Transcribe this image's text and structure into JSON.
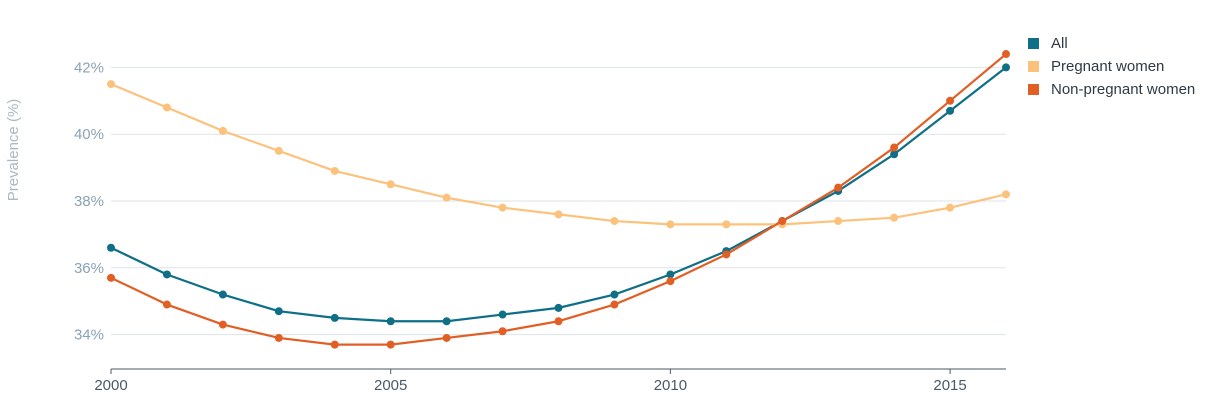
{
  "chart_data": {
    "type": "line",
    "ylabel": "Prevalence (%)",
    "xlabel": "",
    "x": [
      2000,
      2001,
      2002,
      2003,
      2004,
      2005,
      2006,
      2007,
      2008,
      2009,
      2010,
      2011,
      2012,
      2013,
      2014,
      2015,
      2016
    ],
    "x_ticks": [
      2000,
      2005,
      2010,
      2015
    ],
    "x_tick_labels": [
      "2000",
      "2005",
      "2010",
      "2015"
    ],
    "y_ticks": [
      34,
      36,
      38,
      40,
      42
    ],
    "y_tick_labels": [
      "34%",
      "36%",
      "38%",
      "40%",
      "42%"
    ],
    "xlim": [
      2000,
      2016
    ],
    "ylim": [
      33,
      43
    ],
    "grid": "horizontal",
    "legend_position": "top-right",
    "series": [
      {
        "name": "All",
        "color": "#0e6f86",
        "values": [
          36.6,
          35.8,
          35.2,
          34.7,
          34.5,
          34.4,
          34.4,
          34.6,
          34.8,
          35.2,
          35.8,
          36.5,
          37.4,
          38.3,
          39.4,
          40.7,
          42.0
        ]
      },
      {
        "name": "Pregnant women",
        "color": "#fcc27c",
        "values": [
          41.5,
          40.8,
          40.1,
          39.5,
          38.9,
          38.5,
          38.1,
          37.8,
          37.6,
          37.4,
          37.3,
          37.3,
          37.3,
          37.4,
          37.5,
          37.8,
          38.2
        ]
      },
      {
        "name": "Non-pregnant women",
        "color": "#e15e24",
        "values": [
          35.7,
          34.9,
          34.3,
          33.9,
          33.7,
          33.7,
          33.9,
          34.1,
          34.4,
          34.9,
          35.6,
          36.4,
          37.4,
          38.4,
          39.6,
          41.0,
          42.4
        ]
      }
    ]
  }
}
